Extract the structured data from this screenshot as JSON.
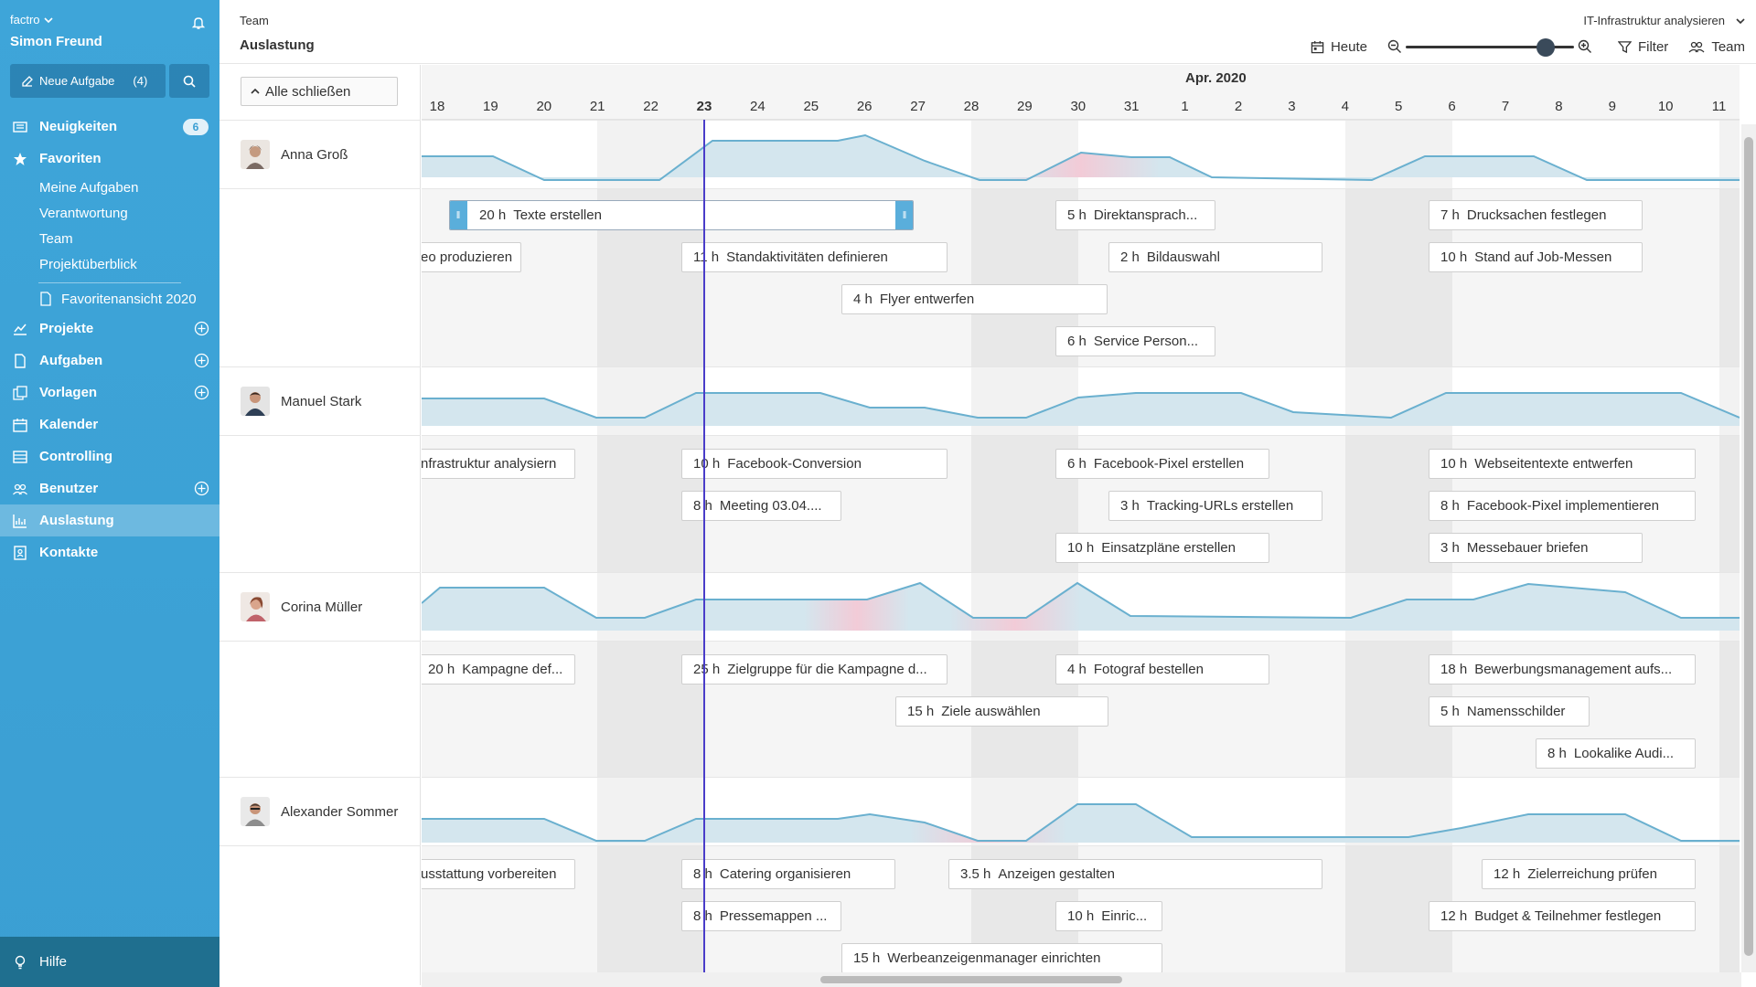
{
  "sidebar": {
    "app_name": "factro",
    "user_name": "Simon Freund",
    "new_task_label": "Neue Aufgabe",
    "new_task_count": "(4)",
    "news": {
      "label": "Neuigkeiten",
      "badge": "6"
    },
    "favorites": {
      "label": "Favoriten",
      "items": [
        "Meine Aufgaben",
        "Verantwortung",
        "Team",
        "Projektüberblick"
      ],
      "view": "Favoritenansicht 2020"
    },
    "items": [
      {
        "label": "Projekte"
      },
      {
        "label": "Aufgaben"
      },
      {
        "label": "Vorlagen"
      },
      {
        "label": "Kalender"
      },
      {
        "label": "Controlling"
      },
      {
        "label": "Benutzer"
      },
      {
        "label": "Auslastung"
      },
      {
        "label": "Kontakte"
      }
    ],
    "help_label": "Hilfe"
  },
  "header": {
    "breadcrumb": "Team",
    "title": "Auslastung",
    "project_select": "IT-Infrastruktur analysieren",
    "today_label": "Heute",
    "zoom_level": 0.83,
    "filter_label": "Filter",
    "team_label": "Team"
  },
  "controls": {
    "collapse_all": "Alle schließen"
  },
  "timeline": {
    "month": "Apr. 2020",
    "days": [
      "18",
      "19",
      "20",
      "21",
      "22",
      "23",
      "24",
      "25",
      "26",
      "27",
      "28",
      "29",
      "30",
      "31",
      "1",
      "2",
      "3",
      "4",
      "5",
      "6",
      "7",
      "8",
      "9",
      "10",
      "11"
    ],
    "today_index": 5
  },
  "people": [
    {
      "name": "Anna Groß",
      "tasks": [
        {
          "hours": "20 h",
          "title": "Texte erstellen"
        },
        {
          "hours": "5 h",
          "title": "Direktansprach..."
        },
        {
          "hours": "7 h",
          "title": "Drucksachen festlegen"
        },
        {
          "hours": "",
          "title": "eo produzieren"
        },
        {
          "hours": "11 h",
          "title": "Standaktivitäten definieren"
        },
        {
          "hours": "2 h",
          "title": "Bildauswahl"
        },
        {
          "hours": "10 h",
          "title": "Stand auf Job-Messen"
        },
        {
          "hours": "4 h",
          "title": "Flyer entwerfen"
        },
        {
          "hours": "6 h",
          "title": "Service Person..."
        }
      ]
    },
    {
      "name": "Manuel Stark",
      "tasks": [
        {
          "hours": "",
          "title": "nfrastruktur analysiern"
        },
        {
          "hours": "10 h",
          "title": "Facebook-Conversion"
        },
        {
          "hours": "6 h",
          "title": "Facebook-Pixel erstellen"
        },
        {
          "hours": "10 h",
          "title": "Webseitentexte entwerfen"
        },
        {
          "hours": "8 h",
          "title": "Meeting 03.04...."
        },
        {
          "hours": "3 h",
          "title": "Tracking-URLs erstellen"
        },
        {
          "hours": "8 h",
          "title": "Facebook-Pixel implementieren"
        },
        {
          "hours": "10 h",
          "title": "Einsatzpläne erstellen"
        },
        {
          "hours": "3 h",
          "title": "Messebauer briefen"
        }
      ]
    },
    {
      "name": "Corina Müller",
      "tasks": [
        {
          "hours": "20 h",
          "title": "Kampagne def..."
        },
        {
          "hours": "25 h",
          "title": "Zielgruppe für die Kampagne d..."
        },
        {
          "hours": "4 h",
          "title": "Fotograf bestellen"
        },
        {
          "hours": "18 h",
          "title": "Bewerbungsmanagement aufs..."
        },
        {
          "hours": "15 h",
          "title": "Ziele auswählen"
        },
        {
          "hours": "5 h",
          "title": "Namensschilder"
        },
        {
          "hours": "8 h",
          "title": "Lookalike Audi..."
        }
      ]
    },
    {
      "name": "Alexander Sommer",
      "tasks": [
        {
          "hours": "",
          "title": "usstattung vorbereiten"
        },
        {
          "hours": "8 h",
          "title": "Catering organisieren"
        },
        {
          "hours": "3.5 h",
          "title": "Anzeigen gestalten"
        },
        {
          "hours": "12 h",
          "title": "Zielerreichung prüfen"
        },
        {
          "hours": "8 h",
          "title": "Pressemappen ..."
        },
        {
          "hours": "10 h",
          "title": "Einric..."
        },
        {
          "hours": "12 h",
          "title": "Budget & Teilnehmer festlegen"
        },
        {
          "hours": "15 h",
          "title": "Werbeanzeigenmanager einrichten"
        }
      ]
    }
  ],
  "colors": {
    "sidebar": "#3ea5d9",
    "accent": "#5aaedb",
    "today": "#4a3dc9",
    "overload": "#e9a2b8"
  }
}
